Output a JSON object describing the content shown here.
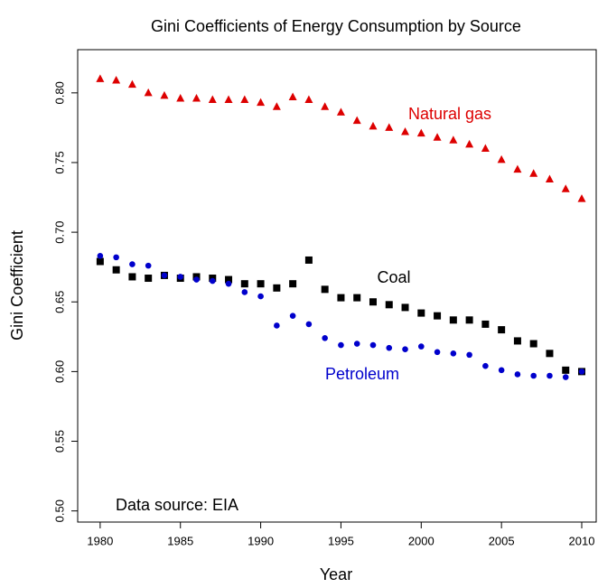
{
  "chart_data": {
    "type": "scatter",
    "title": "Gini Coefficients of Energy Consumption by Source",
    "xlabel": "Year",
    "ylabel": "Gini Coefficient",
    "annotations": [
      "Data source: EIA"
    ],
    "x": [
      1980,
      1981,
      1982,
      1983,
      1984,
      1985,
      1986,
      1987,
      1988,
      1989,
      1990,
      1991,
      1992,
      1993,
      1994,
      1995,
      1996,
      1997,
      1998,
      1999,
      2000,
      2001,
      2002,
      2003,
      2004,
      2005,
      2006,
      2007,
      2008,
      2009,
      2010
    ],
    "series": [
      {
        "name": "Natural gas",
        "color": "#dd0000",
        "marker": "triangle",
        "values": [
          0.81,
          0.809,
          0.806,
          0.8,
          0.798,
          0.796,
          0.796,
          0.795,
          0.795,
          0.795,
          0.793,
          0.79,
          0.797,
          0.795,
          0.79,
          0.786,
          0.78,
          0.776,
          0.775,
          0.772,
          0.771,
          0.768,
          0.766,
          0.763,
          0.76,
          0.752,
          0.745,
          0.742,
          0.738,
          0.731,
          0.724
        ]
      },
      {
        "name": "Coal",
        "color": "#000000",
        "marker": "square",
        "values": [
          0.679,
          0.673,
          0.668,
          0.667,
          0.669,
          0.667,
          0.668,
          0.667,
          0.666,
          0.663,
          0.663,
          0.66,
          0.663,
          0.68,
          0.659,
          0.653,
          0.653,
          0.65,
          0.648,
          0.646,
          0.642,
          0.64,
          0.637,
          0.637,
          0.634,
          0.63,
          0.622,
          0.62,
          0.613,
          0.601,
          0.6
        ]
      },
      {
        "name": "Petroleum",
        "color": "#0000cc",
        "marker": "circle",
        "values": [
          0.683,
          0.682,
          0.677,
          0.676,
          0.669,
          0.668,
          0.666,
          0.665,
          0.663,
          0.657,
          0.654,
          0.633,
          0.64,
          0.634,
          0.624,
          0.619,
          0.62,
          0.619,
          0.617,
          0.616,
          0.618,
          0.614,
          0.613,
          0.612,
          0.604,
          0.601,
          0.598,
          0.597,
          0.597,
          0.596,
          0.6
        ]
      }
    ],
    "xlim": [
      1978.6,
      2010.9
    ],
    "ylim": [
      0.492,
      0.831
    ],
    "xticks": [
      1980,
      1985,
      1990,
      1995,
      2000,
      2005,
      2010
    ],
    "yticks": [
      {
        "value": 0.5,
        "label": "0.50"
      },
      {
        "value": 0.55,
        "label": "0.55"
      },
      {
        "value": 0.6,
        "label": "0.60"
      },
      {
        "value": 0.65,
        "label": "0.65"
      },
      {
        "value": 0.7,
        "label": "0.70"
      },
      {
        "value": 0.75,
        "label": "0.75"
      },
      {
        "value": 0.8,
        "label": "0.80"
      }
    ]
  }
}
